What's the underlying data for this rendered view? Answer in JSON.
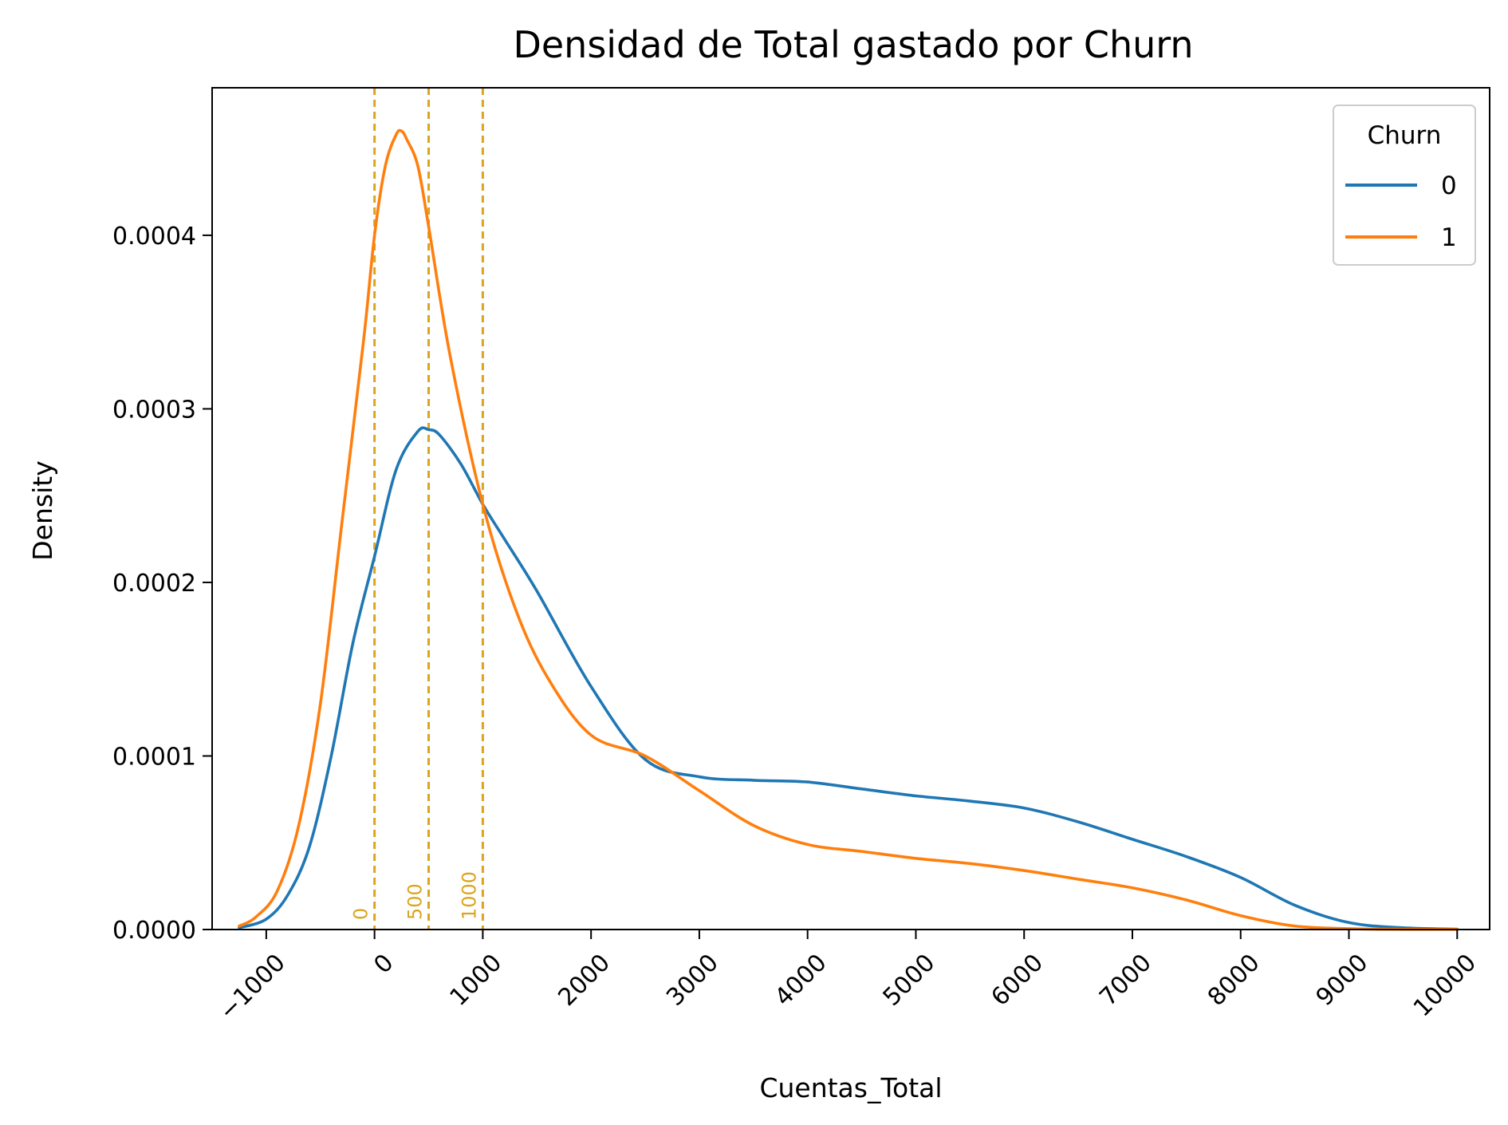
{
  "chart_data": {
    "type": "line",
    "title": "Densidad de Total gastado por Churn",
    "xlabel": "Cuentas_Total",
    "ylabel": "Density",
    "xlim": [
      -1500,
      10300
    ],
    "ylim": [
      0,
      0.000485
    ],
    "x_ticks": [
      -1000,
      0,
      1000,
      2000,
      3000,
      4000,
      5000,
      6000,
      7000,
      8000,
      9000,
      10000
    ],
    "x_tick_labels": [
      "−1000",
      "0",
      "1000",
      "2000",
      "3000",
      "4000",
      "5000",
      "6000",
      "7000",
      "8000",
      "9000",
      "10000"
    ],
    "y_ticks": [
      0,
      0.0001,
      0.0002,
      0.0003,
      0.0004
    ],
    "y_tick_labels": [
      "0.0000",
      "0.0001",
      "0.0002",
      "0.0003",
      "0.0004"
    ],
    "grid": false,
    "legend": {
      "title": "Churn",
      "placement": "top-right"
    },
    "series": [
      {
        "name": "0",
        "color": "#1f77b4",
        "x": [
          -1250,
          -1000,
          -800,
          -600,
          -400,
          -200,
          0,
          200,
          400,
          500,
          600,
          800,
          1000,
          1200,
          1500,
          2000,
          2500,
          3000,
          3500,
          4000,
          4500,
          5000,
          5500,
          6000,
          6500,
          7000,
          7500,
          8000,
          8500,
          9000,
          9500,
          10000
        ],
        "y": [
          1e-06,
          6e-06,
          2e-05,
          4.8e-05,
          0.0001,
          0.000165,
          0.000215,
          0.000265,
          0.000287,
          0.000288,
          0.000285,
          0.000268,
          0.000245,
          0.000225,
          0.000195,
          0.00014,
          9.8e-05,
          8.8e-05,
          8.6e-05,
          8.5e-05,
          8.1e-05,
          7.7e-05,
          7.4e-05,
          7e-05,
          6.2e-05,
          5.2e-05,
          4.2e-05,
          3e-05,
          1.4e-05,
          4e-06,
          1e-06,
          2e-07
        ]
      },
      {
        "name": "1",
        "color": "#ff7f0e",
        "x": [
          -1250,
          -1100,
          -900,
          -700,
          -500,
          -300,
          -100,
          0,
          100,
          200,
          250,
          300,
          400,
          500,
          700,
          1000,
          1300,
          1600,
          2000,
          2500,
          3000,
          3500,
          4000,
          4500,
          5000,
          5500,
          6000,
          6500,
          7000,
          7500,
          8000,
          8500,
          9000,
          9500,
          10000
        ],
        "y": [
          2e-06,
          7e-06,
          2.2e-05,
          6e-05,
          0.00013,
          0.000235,
          0.00034,
          0.0004,
          0.00044,
          0.000458,
          0.00046,
          0.000455,
          0.00044,
          0.000405,
          0.00033,
          0.000245,
          0.000185,
          0.000145,
          0.000112,
          0.0001,
          8e-05,
          6e-05,
          4.9e-05,
          4.5e-05,
          4.1e-05,
          3.8e-05,
          3.4e-05,
          2.9e-05,
          2.4e-05,
          1.7e-05,
          8e-06,
          2e-06,
          5e-07,
          1e-07,
          1e-07
        ]
      }
    ],
    "reference_lines": [
      {
        "x": 0,
        "label": "0",
        "color": "#daa520"
      },
      {
        "x": 500,
        "label": "500",
        "color": "#daa520"
      },
      {
        "x": 1000,
        "label": "1000",
        "color": "#daa520"
      }
    ]
  }
}
